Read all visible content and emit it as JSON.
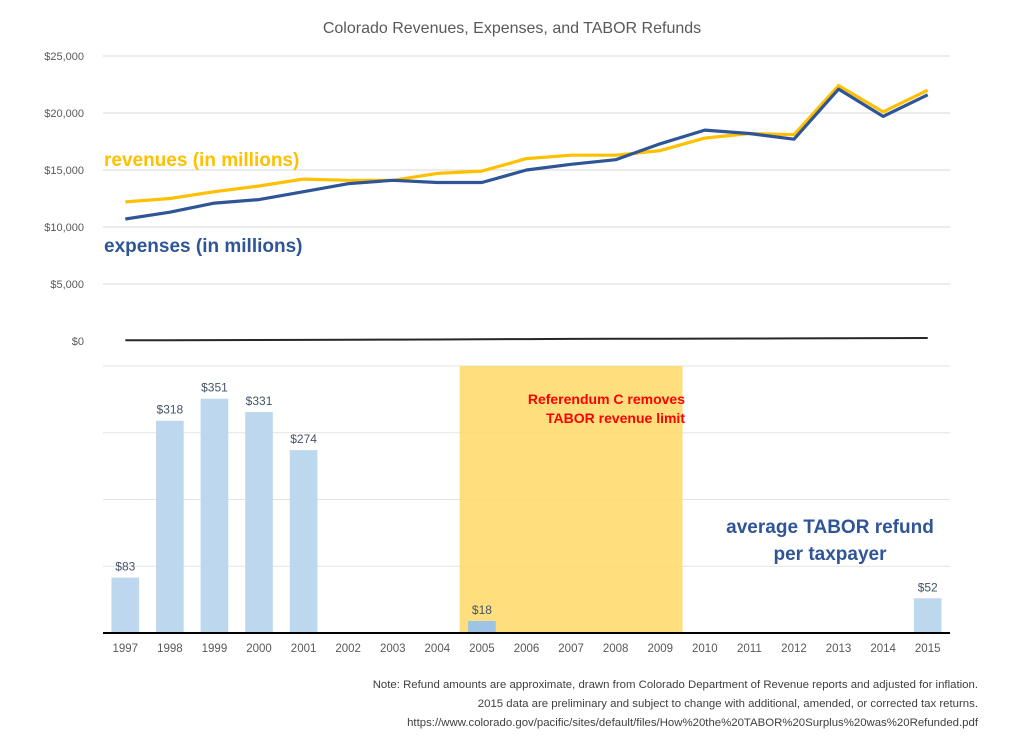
{
  "chart_data": [
    {
      "type": "line",
      "title": "Colorado Revenues, Expenses, and TABOR Refunds",
      "x": [
        1997,
        1998,
        1999,
        2000,
        2001,
        2002,
        2003,
        2004,
        2005,
        2006,
        2007,
        2008,
        2009,
        2010,
        2011,
        2012,
        2013,
        2014,
        2015
      ],
      "series": [
        {
          "name": "revenues (in millions)",
          "color": "#ffc000",
          "values": [
            12200,
            12500,
            13100,
            13600,
            14200,
            14100,
            14100,
            14700,
            14900,
            16000,
            16300,
            16300,
            16700,
            17800,
            18200,
            18100,
            22400,
            20100,
            22000
          ]
        },
        {
          "name": "expenses (in millions)",
          "color": "#2f5597",
          "values": [
            10700,
            11300,
            12100,
            12400,
            13100,
            13800,
            14100,
            13900,
            13900,
            15000,
            15500,
            15900,
            17300,
            18500,
            18200,
            17700,
            22100,
            19700,
            21600
          ]
        },
        {
          "name": "baseline",
          "color": "#262626",
          "values": [
            60,
            70,
            80,
            90,
            100,
            110,
            120,
            130,
            150,
            170,
            180,
            190,
            200,
            210,
            220,
            230,
            240,
            250,
            260
          ]
        }
      ],
      "yticks": [
        "$0",
        "$5,000",
        "$10,000",
        "$15,000",
        "$20,000",
        "$25,000"
      ],
      "ylim": [
        0,
        25000
      ],
      "grid": true
    },
    {
      "type": "bar",
      "title": "average TABOR refund per taxpayer",
      "categories": [
        "1997",
        "1998",
        "1999",
        "2000",
        "2001",
        "2002",
        "2003",
        "2004",
        "2005",
        "2006",
        "2007",
        "2008",
        "2009",
        "2010",
        "2011",
        "2012",
        "2013",
        "2014",
        "2015"
      ],
      "values": [
        83,
        318,
        351,
        331,
        274,
        0,
        0,
        0,
        18,
        0,
        0,
        0,
        0,
        0,
        0,
        0,
        0,
        0,
        52
      ],
      "data_labels": [
        "$83",
        "$318",
        "$351",
        "$331",
        "$274",
        "",
        "",
        "",
        "$18",
        "",
        "",
        "",
        "",
        "",
        "",
        "",
        "",
        "",
        "$52"
      ],
      "ylim": [
        0,
        400
      ],
      "grid": true,
      "shaded_period": {
        "from": "2005",
        "to": "2009",
        "color": "#ffd966",
        "annotation": [
          "Referendum C removes",
          "TABOR revenue limit"
        ]
      },
      "bar_color": "#bdd7ee",
      "highlight_bar_color": "#9dc3e6"
    }
  ],
  "labels": {
    "title": "Colorado Revenues, Expenses, and TABOR Refunds",
    "revenues": "revenues (in millions)",
    "expenses": "expenses (in millions)",
    "refund_line1": "average TABOR refund",
    "refund_line2": "per taxpayer",
    "annotation_line1": "Referendum C removes",
    "annotation_line2": "TABOR revenue limit"
  },
  "note": {
    "line1": "Note: Refund amounts are approximate, drawn from Colorado Department of Revenue reports and adjusted for inflation.",
    "line2": "2015 data are preliminary and subject to change with additional, amended, or corrected tax returns.",
    "line3": "https://www.colorado.gov/pacific/sites/default/files/How%20the%20TABOR%20Surplus%20was%20Refunded.pdf"
  }
}
